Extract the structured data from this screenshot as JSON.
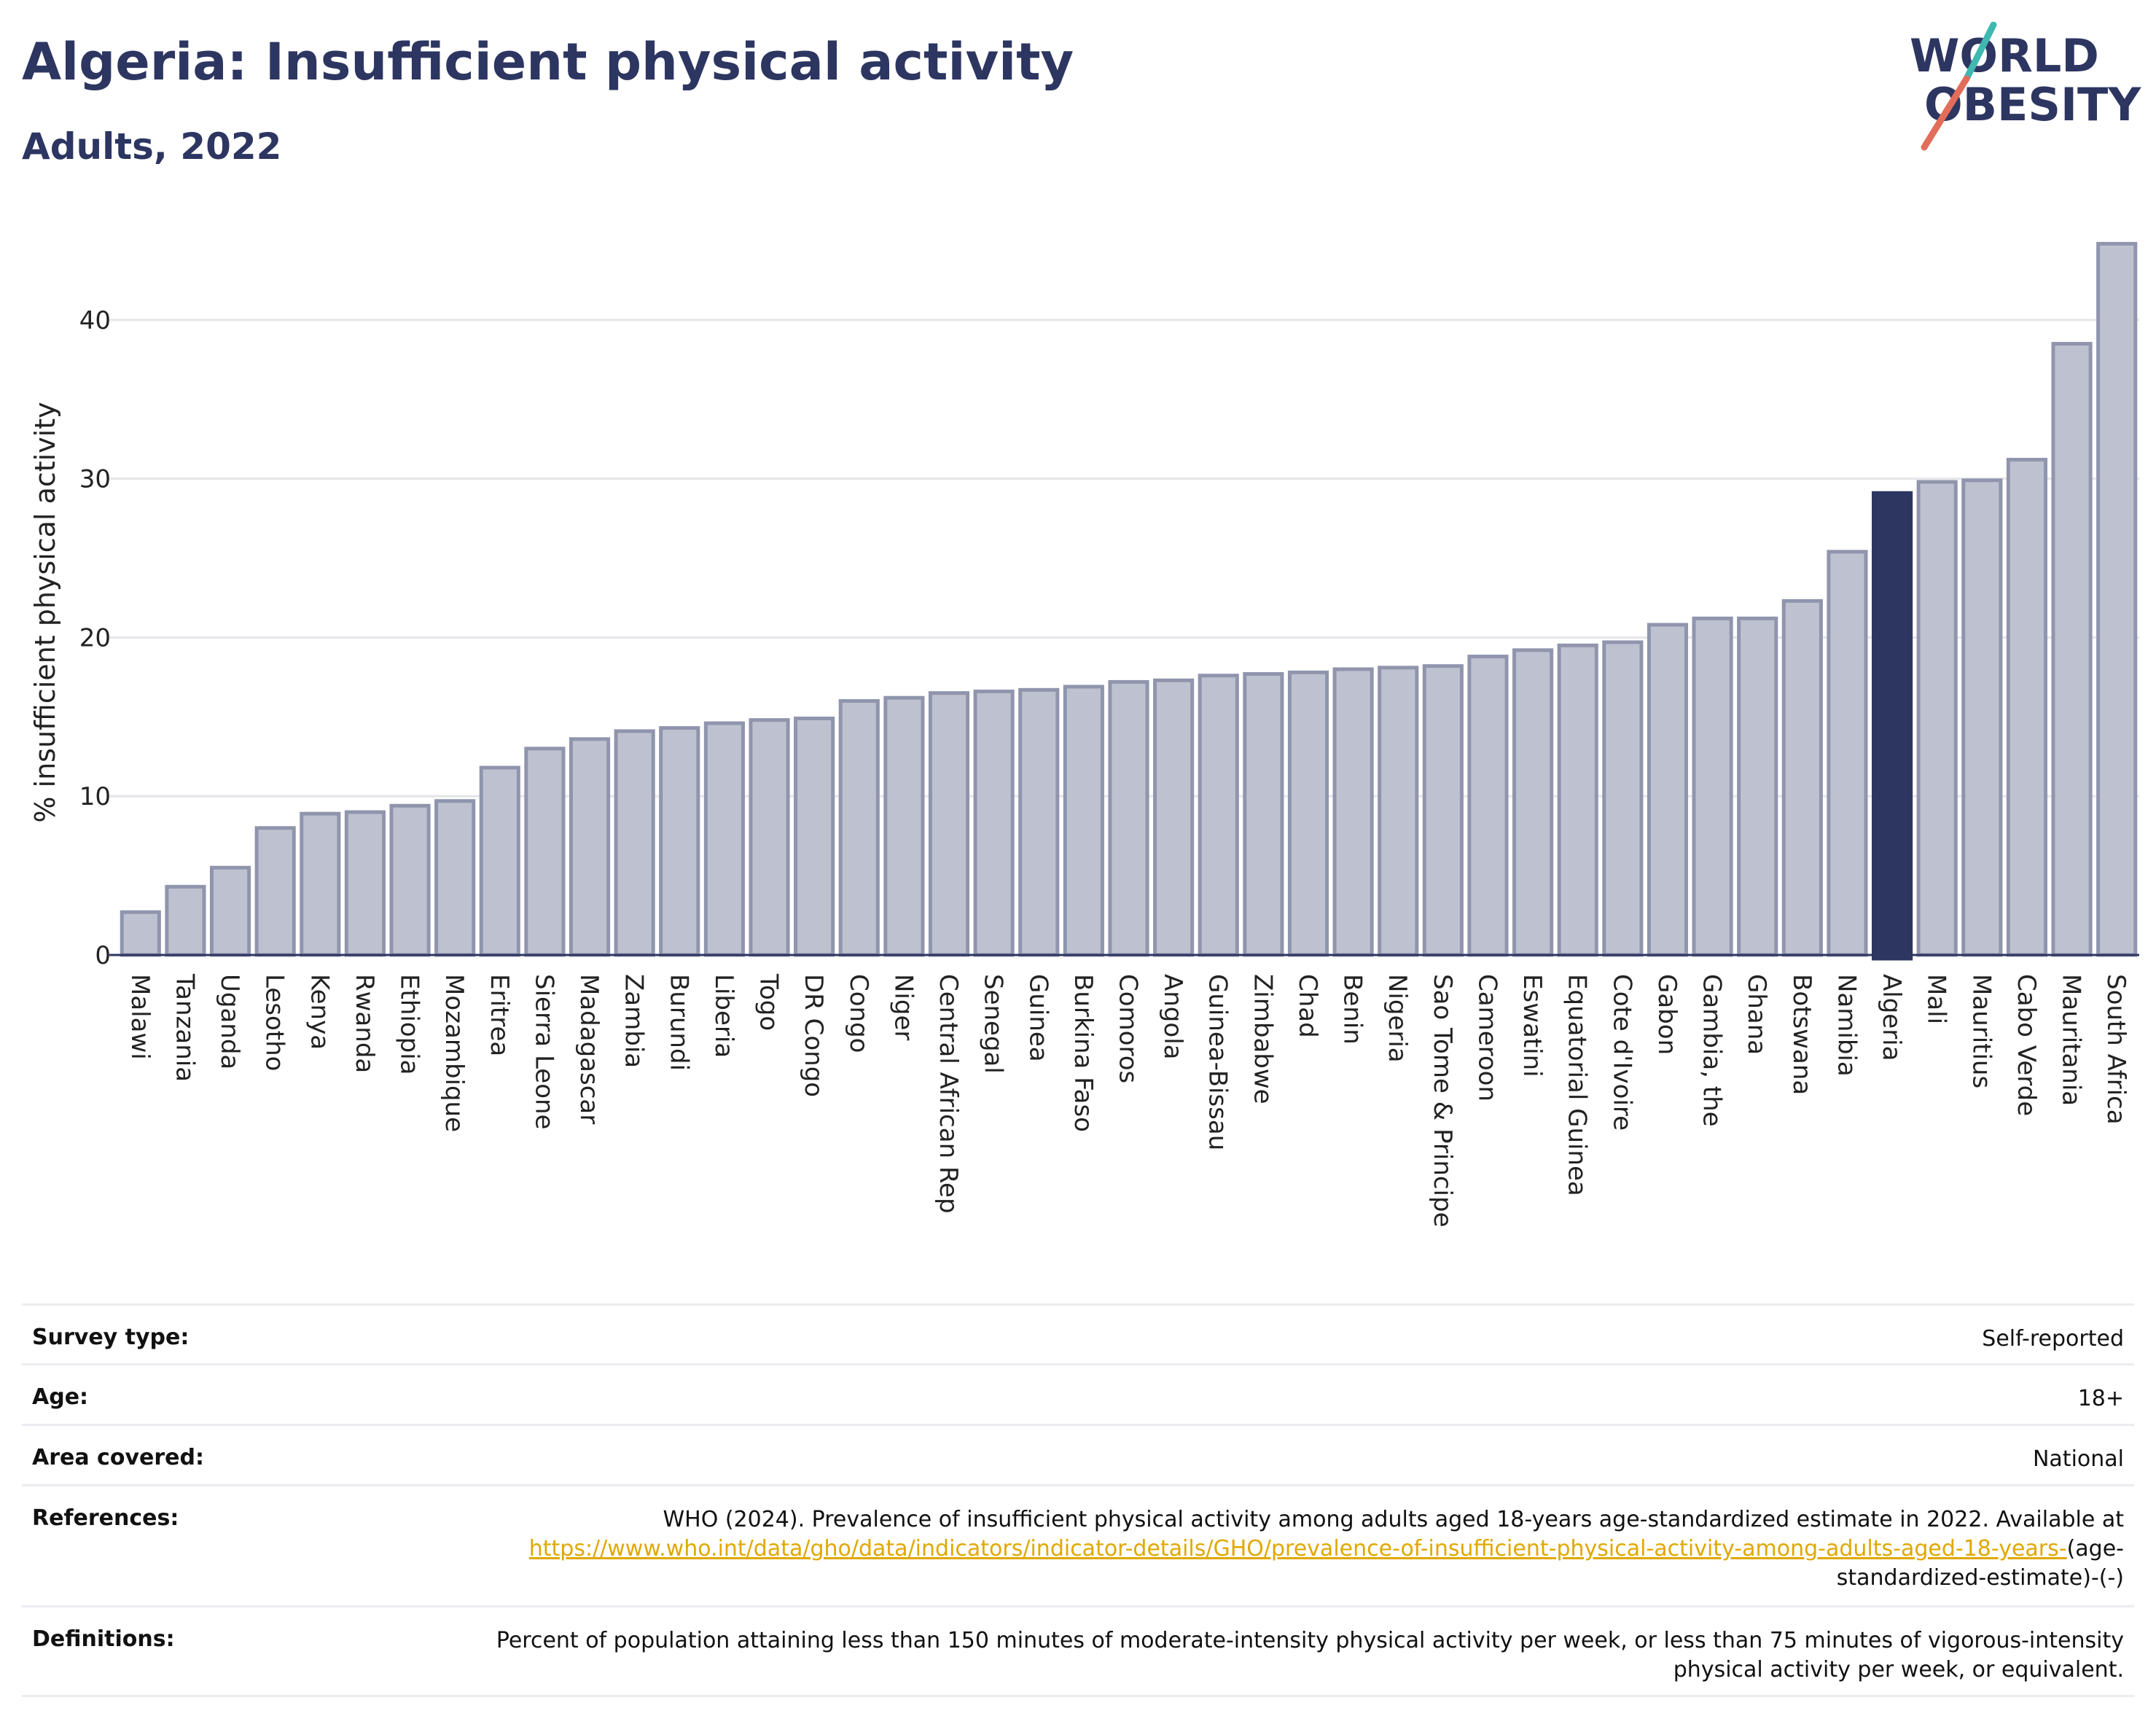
{
  "title": "Algeria: Insufficient physical activity",
  "subtitle": "Adults, 2022",
  "logo": {
    "line1": "WORLD",
    "line2": "OBESITY",
    "icon": "world-obesity-logo"
  },
  "colors": {
    "highlight": "#2d3561",
    "bar_fill": "#bec2d0",
    "bar_stroke": "#9095ad",
    "grid": "#e6e6ea",
    "link": "#e0a800"
  },
  "chart_data": {
    "type": "bar",
    "ylabel": "% insufficient physical activity",
    "xlabel": "",
    "ylim": [
      0,
      45
    ],
    "yticks": [
      0,
      10,
      20,
      30,
      40
    ],
    "grid": true,
    "highlight": "Algeria",
    "categories": [
      "Malawi",
      "Tanzania",
      "Uganda",
      "Lesotho",
      "Kenya",
      "Rwanda",
      "Ethiopia",
      "Mozambique",
      "Eritrea",
      "Sierra Leone",
      "Madagascar",
      "Zambia",
      "Burundi",
      "Liberia",
      "Togo",
      "DR Congo",
      "Congo",
      "Niger",
      "Central African Rep",
      "Senegal",
      "Guinea",
      "Burkina Faso",
      "Comoros",
      "Angola",
      "Guinea-Bissau",
      "Zimbabwe",
      "Chad",
      "Benin",
      "Nigeria",
      "Sao Tome & Principe",
      "Cameroon",
      "Eswatini",
      "Equatorial Guinea",
      "Cote d'Ivoire",
      "Gabon",
      "Gambia, the",
      "Ghana",
      "Botswana",
      "Namibia",
      "Algeria",
      "Mali",
      "Mauritius",
      "Cabo Verde",
      "Mauritania",
      "South Africa"
    ],
    "values": [
      2.7,
      4.3,
      5.5,
      8.0,
      8.9,
      9.0,
      9.4,
      9.7,
      11.8,
      13.0,
      13.6,
      14.1,
      14.3,
      14.6,
      14.8,
      14.9,
      16.0,
      16.2,
      16.5,
      16.6,
      16.7,
      16.9,
      17.2,
      17.3,
      17.6,
      17.7,
      17.8,
      18.0,
      18.1,
      18.2,
      18.8,
      19.2,
      19.5,
      19.7,
      20.8,
      21.2,
      21.2,
      22.3,
      25.4,
      29.1,
      29.8,
      29.9,
      31.2,
      38.5,
      44.8
    ]
  },
  "info": {
    "survey_label": "Survey type:",
    "survey_value": "Self-reported",
    "age_label": "Age:",
    "age_value": "18+",
    "area_label": "Area covered:",
    "area_value": "National",
    "references_label": "References:",
    "references_text": "WHO (2024). Prevalence of insufficient physical activity among adults aged 18-years age-standardized estimate in 2022. Available at",
    "references_link": "https://www.who.int/data/gho/data/indicators/indicator-details/GHO/prevalence-of-insufficient-physical-activity-among-adults-aged-18-years-",
    "references_suffix": "(age-standardized-estimate)-(-)",
    "definitions_label": "Definitions:",
    "definitions_text": "Percent of population attaining less than 150 minutes of moderate-intensity physical activity per week, or less than 75 minutes of vigorous-intensity physical activity per week, or equivalent."
  }
}
